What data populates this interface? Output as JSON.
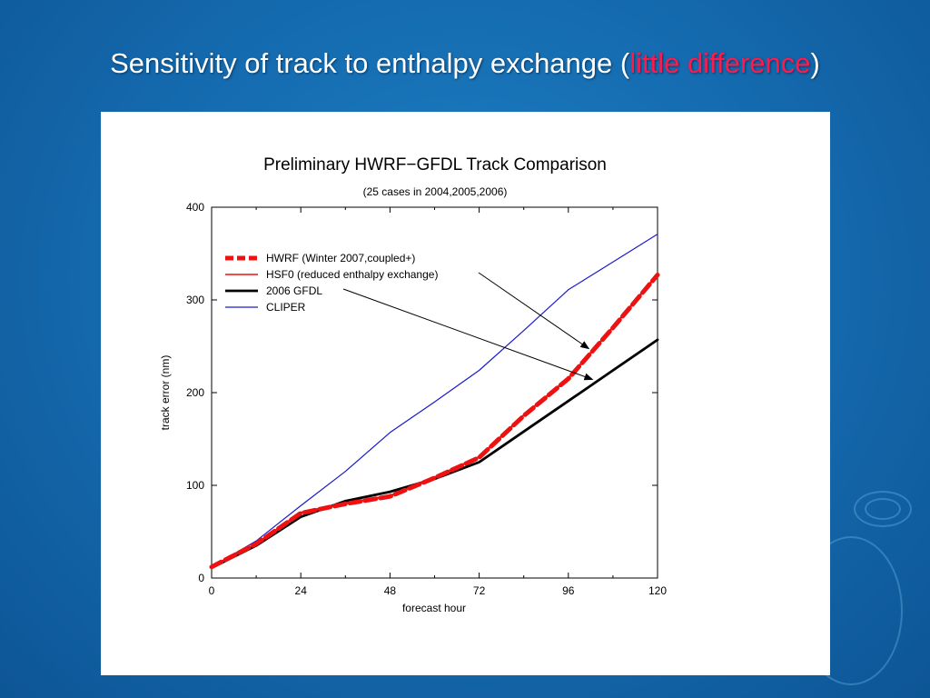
{
  "slide": {
    "title_prefix": "Sensitivity of track to enthalpy exchange (",
    "title_highlight": "little difference",
    "title_suffix": ")"
  },
  "colors": {
    "background": "#1469ad",
    "highlight": "#ff1a4d",
    "hwrf": "#ee1111",
    "hsf0": "#ee1111",
    "gfdl": "#000000",
    "cliper": "#1a1acc"
  },
  "chart_data": {
    "type": "line",
    "title": "Preliminary  HWRF−GFDL Track Comparison",
    "subtitle": "(25 cases in 2004,2005,2006)",
    "xlabel": "forecast hour",
    "ylabel": "track error (nm)",
    "xlim": [
      0,
      120
    ],
    "ylim": [
      0,
      400
    ],
    "xticks": [
      "0",
      "24",
      "48",
      "72",
      "96",
      "120"
    ],
    "yticks": [
      "0",
      "100",
      "200",
      "300",
      "400"
    ],
    "legend_position": "top-left",
    "grid": false,
    "x": [
      0,
      12,
      24,
      36,
      48,
      60,
      72,
      84,
      96,
      108,
      120
    ],
    "series": [
      {
        "name": "HWRF (Winter 2007,coupled+)",
        "style": "dashed-thick",
        "values": [
          12,
          37,
          70,
          80,
          88,
          108,
          130,
          175,
          215,
          270,
          327
        ]
      },
      {
        "name": "HSF0 (reduced enthalpy exchange)",
        "style": "solid",
        "values": [
          12,
          37,
          71,
          81,
          89,
          109,
          131,
          176,
          216,
          271,
          328
        ]
      },
      {
        "name": "2006 GFDL",
        "style": "solid-thick",
        "values": [
          11,
          35,
          66,
          83,
          93,
          107,
          125,
          158,
          191,
          224,
          257
        ]
      },
      {
        "name": "CLIPER",
        "style": "solid-thin",
        "values": [
          12,
          40,
          78,
          115,
          157,
          190,
          224,
          267,
          311,
          341,
          371
        ]
      }
    ],
    "annotations": [
      {
        "type": "arrow",
        "from_legend_entry": 1,
        "to_series": 1,
        "at_x": 102
      },
      {
        "type": "arrow",
        "from_legend_entry": 2,
        "to_series": 2,
        "at_x": 103
      }
    ]
  }
}
